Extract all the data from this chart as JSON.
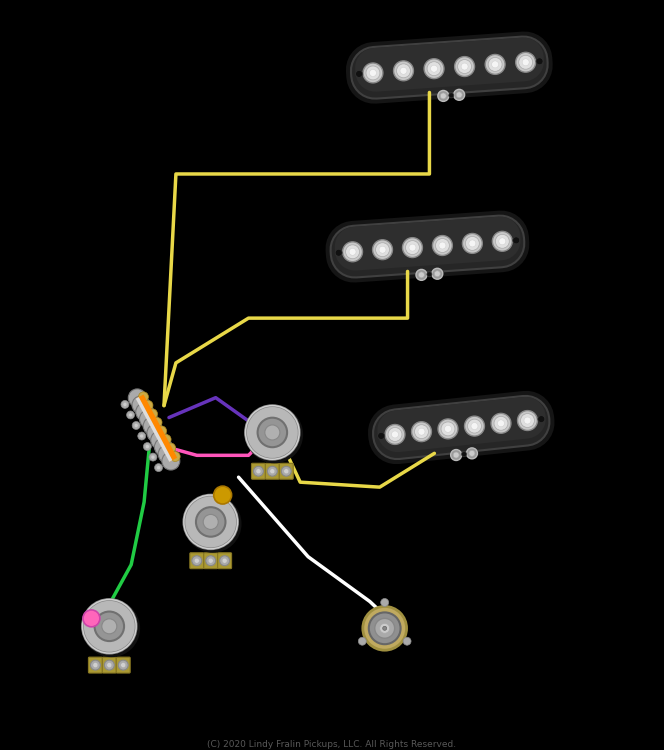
{
  "bg": "#000000",
  "copyright": "(C) 2020 Lindy Fralin Pickups, LLC. All Rights Reserved.",
  "copyright_color": "#585858",
  "wire_yellow": "#e8d848",
  "wire_green": "#20cc44",
  "wire_pink": "#ff55bb",
  "wire_purple": "#6633bb",
  "wire_orange": "#ff8800",
  "wire_white": "#ffffff",
  "pickup_body": "#282828",
  "pickup_edge": "#484848",
  "pickup_grad": "#1a1a1a",
  "pole_outer": "#cccccc",
  "pole_inner": "#eeeeee",
  "pot_body": "#b0b0b0",
  "pot_hub": "#888888",
  "lug_gold": "#ccaa44",
  "switch_body": "#aaaaaa",
  "sw_orange": "#ff8800",
  "jack_tan": "#c8b870",
  "jack_inner": "#808080",
  "screwhead": "#aaaaaa"
}
